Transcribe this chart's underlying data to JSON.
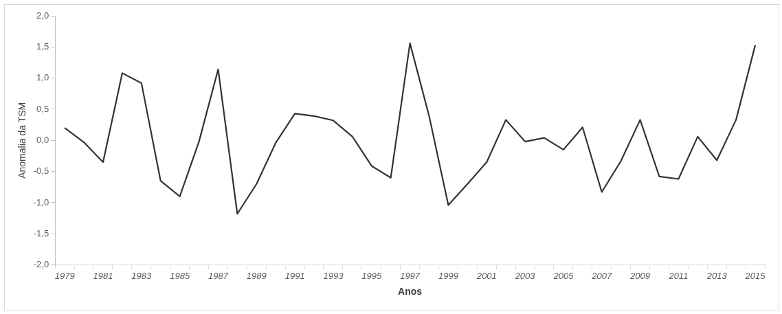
{
  "chart_data": {
    "type": "line",
    "xlabel": "Anos",
    "ylabel": "Anomalia da TSM",
    "categories": [
      "1979",
      null,
      "1981",
      null,
      "1983",
      null,
      "1985",
      null,
      "1987",
      null,
      "1989",
      null,
      "1991",
      null,
      "1993",
      null,
      "1995",
      null,
      "1997",
      null,
      "1999",
      null,
      "2001",
      null,
      "2003",
      null,
      "2005",
      null,
      "2007",
      null,
      "2009",
      null,
      "2011",
      null,
      "2013",
      null,
      "2015"
    ],
    "series": [
      {
        "color": "#333333",
        "values": [
          0.2,
          -0.03,
          -0.35,
          1.08,
          0.92,
          -0.65,
          -0.9,
          -0.02,
          1.14,
          -1.18,
          -0.7,
          -0.04,
          0.43,
          0.39,
          0.32,
          0.06,
          -0.41,
          -0.6,
          1.56,
          0.39,
          -1.04,
          -0.7,
          -0.35,
          0.33,
          -0.02,
          0.04,
          -0.15,
          0.21,
          -0.83,
          -0.33,
          0.33,
          -0.58,
          -0.62,
          0.06,
          -0.32,
          0.33,
          1.53
        ]
      }
    ],
    "ylim": [
      -2,
      2
    ],
    "yticks": [
      {
        "value": -2,
        "label": "-2,0"
      },
      {
        "value": -1.5,
        "label": "-1,5"
      },
      {
        "value": -1,
        "label": "-1,0"
      },
      {
        "value": -0.5,
        "label": "-0,5"
      },
      {
        "value": 0,
        "label": "0,0"
      },
      {
        "value": 0.5,
        "label": "0,5"
      },
      {
        "value": 1,
        "label": "1,0"
      },
      {
        "value": 1.5,
        "label": "1,5"
      },
      {
        "value": 2,
        "label": "2,0"
      }
    ],
    "grid": false,
    "legend": false,
    "marker": "none",
    "line_style": "solid"
  }
}
